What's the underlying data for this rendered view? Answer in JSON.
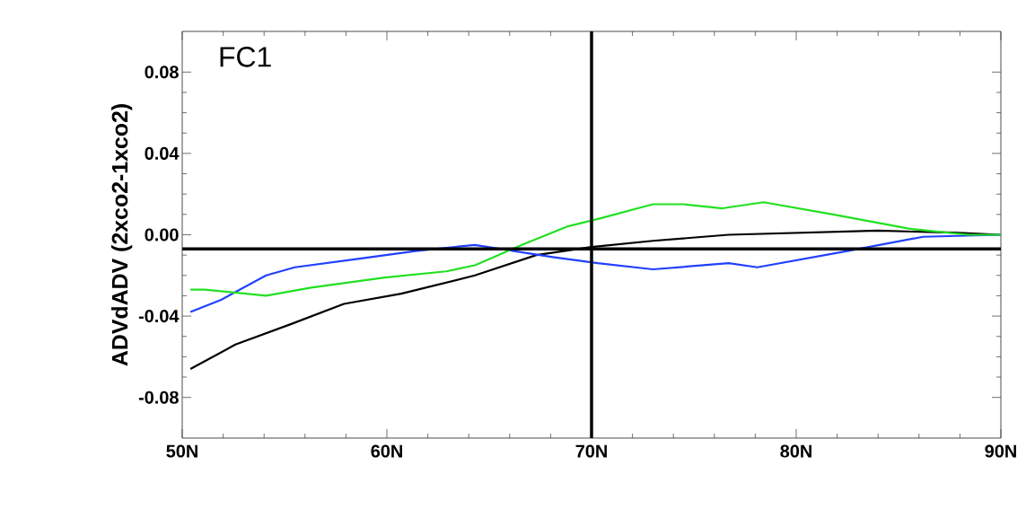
{
  "chart_data": {
    "type": "line",
    "ylabel": "ADVdADV (2xco2-1xco2)",
    "annotations": [
      {
        "text": "FC1"
      }
    ],
    "xlim": [
      50,
      90
    ],
    "ylim": [
      -0.1,
      0.1
    ],
    "xticks": [
      {
        "value": 50,
        "label": "50N"
      },
      {
        "value": 60,
        "label": "60N"
      },
      {
        "value": 70,
        "label": "70N"
      },
      {
        "value": 80,
        "label": "80N"
      },
      {
        "value": 90,
        "label": "90N"
      }
    ],
    "yticks": [
      {
        "value": -0.08,
        "label": "-0.08"
      },
      {
        "value": -0.04,
        "label": "-0.04"
      },
      {
        "value": 0,
        "label": "0.00"
      },
      {
        "value": 0.04,
        "label": "0.04"
      },
      {
        "value": 0.08,
        "label": "0.08"
      }
    ],
    "grid": false,
    "marker": "none",
    "line_style": "solid",
    "ref_lines": [
      {
        "axis": "x",
        "value": 70,
        "color": "#000000"
      },
      {
        "axis": "y",
        "value": -0.007,
        "color": "#000000"
      }
    ],
    "series": [
      {
        "color": "#000000",
        "x": [
          50.4,
          52.6,
          55.3,
          57.9,
          60.7,
          64.3,
          67.3,
          70,
          73,
          76.7,
          84,
          87.7,
          90
        ],
        "values": [
          -0.066,
          -0.054,
          -0.044,
          -0.034,
          -0.029,
          -0.02,
          -0.01,
          -0.006,
          -0.003,
          0.0,
          0.002,
          0.001,
          0.0
        ]
      },
      {
        "color": "#2040ff",
        "x": [
          50.4,
          51.9,
          54.1,
          55.5,
          58.5,
          61.4,
          64.3,
          68.1,
          70.3,
          73,
          76.7,
          78.1,
          82.5,
          86.2,
          90
        ],
        "values": [
          -0.038,
          -0.032,
          -0.02,
          -0.016,
          -0.012,
          -0.008,
          -0.005,
          -0.011,
          -0.014,
          -0.017,
          -0.014,
          -0.016,
          -0.008,
          -0.001,
          0.0
        ]
      },
      {
        "color": "#22e022",
        "x": [
          50.4,
          51.1,
          54.1,
          56.3,
          59.9,
          62.9,
          64.3,
          66.6,
          68.8,
          70.4,
          73,
          74.5,
          76.4,
          78.4,
          81.8,
          85.5,
          88.4,
          90
        ],
        "values": [
          -0.027,
          -0.027,
          -0.03,
          -0.026,
          -0.021,
          -0.018,
          -0.015,
          -0.005,
          0.004,
          0.008,
          0.015,
          0.015,
          0.013,
          0.016,
          0.01,
          0.003,
          0.0,
          0.0
        ]
      }
    ]
  }
}
